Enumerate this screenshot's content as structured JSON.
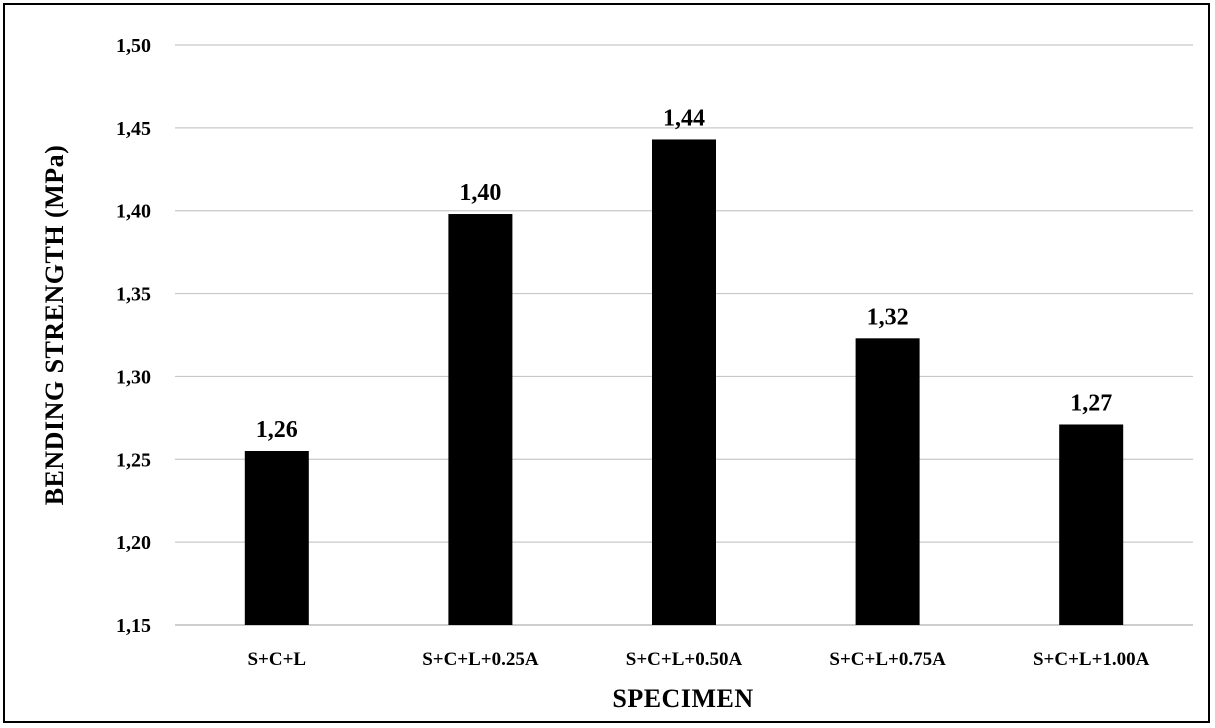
{
  "chart_data": {
    "type": "bar",
    "title": "",
    "xlabel": "SPECIMEN",
    "ylabel": "BENDING STRENGTH (MPa)",
    "categories": [
      "S+C+L",
      "S+C+L+0.25A",
      "S+C+L+0.50A",
      "S+C+L+0.75A",
      "S+C+L+1.00A"
    ],
    "values": [
      1.255,
      1.398,
      1.443,
      1.323,
      1.271
    ],
    "data_labels": [
      "1,26",
      "1,40",
      "1,44",
      "1,32",
      "1,27"
    ],
    "ylim": [
      1.15,
      1.5
    ],
    "yticks": [
      1.15,
      1.2,
      1.25,
      1.3,
      1.35,
      1.4,
      1.45,
      1.5
    ],
    "ytick_labels": [
      "1,15",
      "1,20",
      "1,25",
      "1,30",
      "1,35",
      "1,40",
      "1,45",
      "1,50"
    ],
    "bar_color": "#000000",
    "grid": true,
    "legend": "none"
  }
}
